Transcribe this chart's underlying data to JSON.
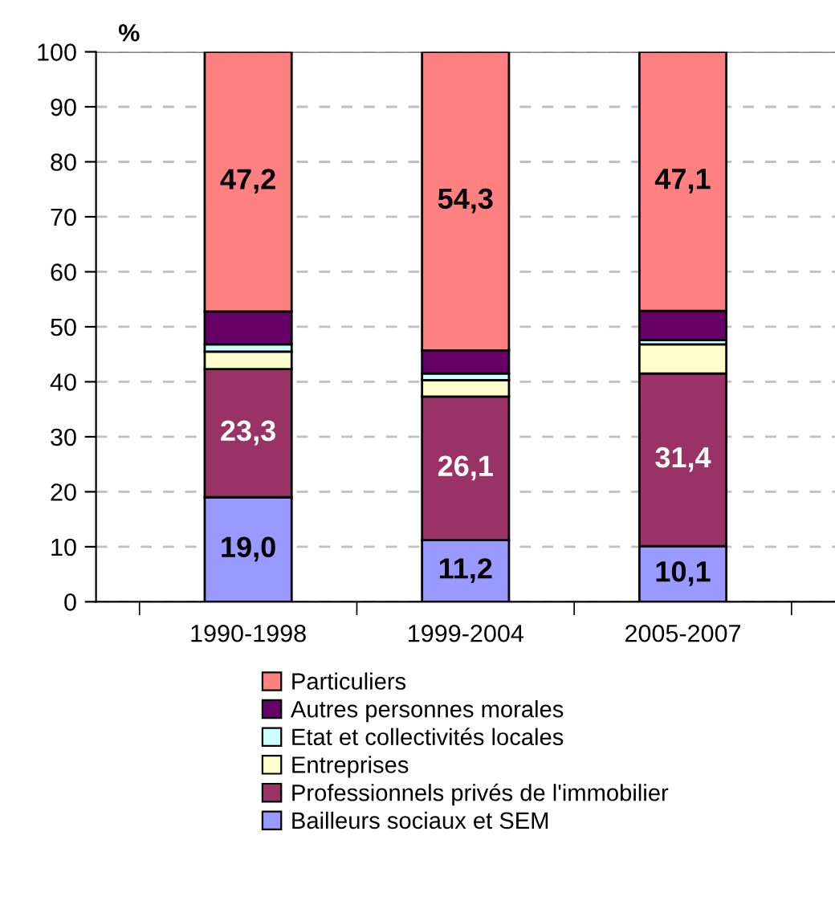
{
  "chart_data": {
    "type": "bar",
    "stacked": true,
    "ylabel": "%",
    "categories": [
      "1990-1998",
      "1999-2004",
      "2005-2007"
    ],
    "series": [
      {
        "name": "Bailleurs sociaux et SEM",
        "color": "#9999ff",
        "values": [
          19.0,
          11.2,
          10.1
        ],
        "value_labels": [
          "19,0",
          "11,2",
          "10,1"
        ]
      },
      {
        "name": "Professionnels privés de l'immobilier",
        "color": "#993366",
        "values": [
          23.3,
          26.1,
          31.4
        ],
        "value_labels": [
          "23,3",
          "26,1",
          "31,4"
        ]
      },
      {
        "name": "Entreprises",
        "color": "#ffffcc",
        "values": [
          3.2,
          3.0,
          5.3
        ]
      },
      {
        "name": "Etat et collectivités locales",
        "color": "#ccffff",
        "values": [
          1.3,
          1.2,
          0.8
        ]
      },
      {
        "name": "Autres personnes morales",
        "color": "#660066",
        "values": [
          6.0,
          4.2,
          5.3
        ]
      },
      {
        "name": "Particuliers",
        "color": "#ff8080",
        "values": [
          47.2,
          54.3,
          47.1
        ],
        "value_labels": [
          "47,2",
          "54,3",
          "47,1"
        ]
      }
    ],
    "ylim": [
      0,
      100
    ],
    "yticks": [
      0,
      10,
      20,
      30,
      40,
      50,
      60,
      70,
      80,
      90,
      100
    ],
    "grid": "y",
    "legend": "bottom"
  }
}
